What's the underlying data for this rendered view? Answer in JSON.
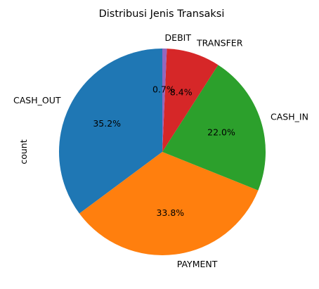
{
  "chart_data": {
    "type": "pie",
    "title": "Distribusi Jenis Transaksi",
    "ylabel": "count",
    "start_angle_deg": 90,
    "direction": "counterclockwise",
    "slices": [
      {
        "label": "CASH_OUT",
        "pct": 35.2,
        "pct_label": "35.2%",
        "color": "#1f77b4"
      },
      {
        "label": "PAYMENT",
        "pct": 33.8,
        "pct_label": "33.8%",
        "color": "#ff7f0e"
      },
      {
        "label": "CASH_IN",
        "pct": 22.0,
        "pct_label": "22.0%",
        "color": "#2ca02c"
      },
      {
        "label": "TRANSFER",
        "pct": 8.4,
        "pct_label": "8.4%",
        "color": "#d62728"
      },
      {
        "label": "DEBIT",
        "pct": 0.7,
        "pct_label": "0.7%",
        "color": "#9467bd"
      }
    ]
  }
}
